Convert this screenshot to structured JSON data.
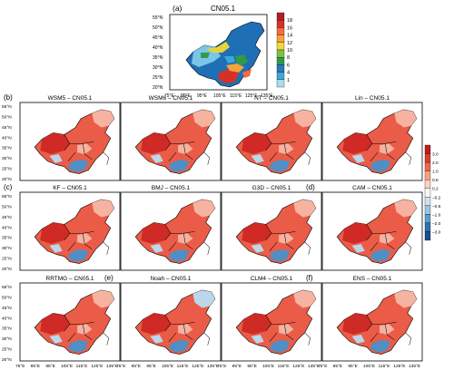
{
  "top": {
    "label": "(a)",
    "title": "CN05.1",
    "lat_ticks": [
      "55°N",
      "50°N",
      "45°N",
      "40°N",
      "35°N",
      "30°N",
      "25°N",
      "20°N"
    ]
  },
  "top_xticks": [
    "75°E",
    "85°E",
    "95°E",
    "105°E",
    "115°E",
    "125°E",
    "135°E"
  ],
  "top_colorbar": {
    "labels": [
      "18",
      "16",
      "14",
      "12",
      "10",
      "8",
      "6",
      "4",
      "1"
    ],
    "colors": [
      "#b01f26",
      "#d7322d",
      "#f36b3f",
      "#f9a03c",
      "#f3d83a",
      "#7dc242",
      "#2e9b4a",
      "#2b79b8",
      "#3aa9d9",
      "#a8dcef"
    ]
  },
  "panels": [
    {
      "label": "(b)",
      "title": "WSM5 – CN05.1"
    },
    {
      "label": "",
      "title": "WSM6 – CN05.1"
    },
    {
      "label": "",
      "title": "NT – CN05.1"
    },
    {
      "label": "",
      "title": "Lin – CN05.1"
    },
    {
      "label": "(c)",
      "title": "KF – CN05.1"
    },
    {
      "label": "",
      "title": "BMJ – CN05.1"
    },
    {
      "label": "",
      "title": "G3D – CN05.1"
    },
    {
      "label": "(d)",
      "title": "CAM – CN05.1"
    },
    {
      "label": "",
      "title": "RRTMG – CN05.1"
    },
    {
      "label": "(e)",
      "title": "Noah – CN05.1"
    },
    {
      "label": "",
      "title": "CLM4 – CN05.1"
    },
    {
      "label": "(f)",
      "title": "ENS – CN05.1"
    }
  ],
  "grid_lat_ticks": [
    "55°N",
    "50°N",
    "45°N",
    "40°N",
    "35°N",
    "30°N",
    "25°N",
    "20°N"
  ],
  "grid_lon_ticks": [
    "75°E",
    "85°E",
    "95°E",
    "105°E",
    "115°E",
    "125°E",
    "135°E"
  ],
  "diff_colorbar": {
    "labels": [
      "3.0",
      "2.0",
      "1.0",
      "0.6",
      "0.2",
      "–0.2",
      "–0.6",
      "–1.0",
      "–2.0",
      "–3.0"
    ],
    "colors": [
      "#c3181f",
      "#de3b2c",
      "#f0664b",
      "#f7a081",
      "#fbd3c0",
      "#f6f6f6",
      "#d1e3f0",
      "#9cc6e0",
      "#5a9ecd",
      "#2f70b0",
      "#1b4f8a"
    ]
  },
  "map_colors": {
    "warm_dark": "#cf2a25",
    "warm_mid": "#ea5c47",
    "warm_light": "#f6b3a1",
    "cool": "#4f8fc5",
    "cool_light": "#bcd6ea",
    "land": "#ffffff"
  }
}
